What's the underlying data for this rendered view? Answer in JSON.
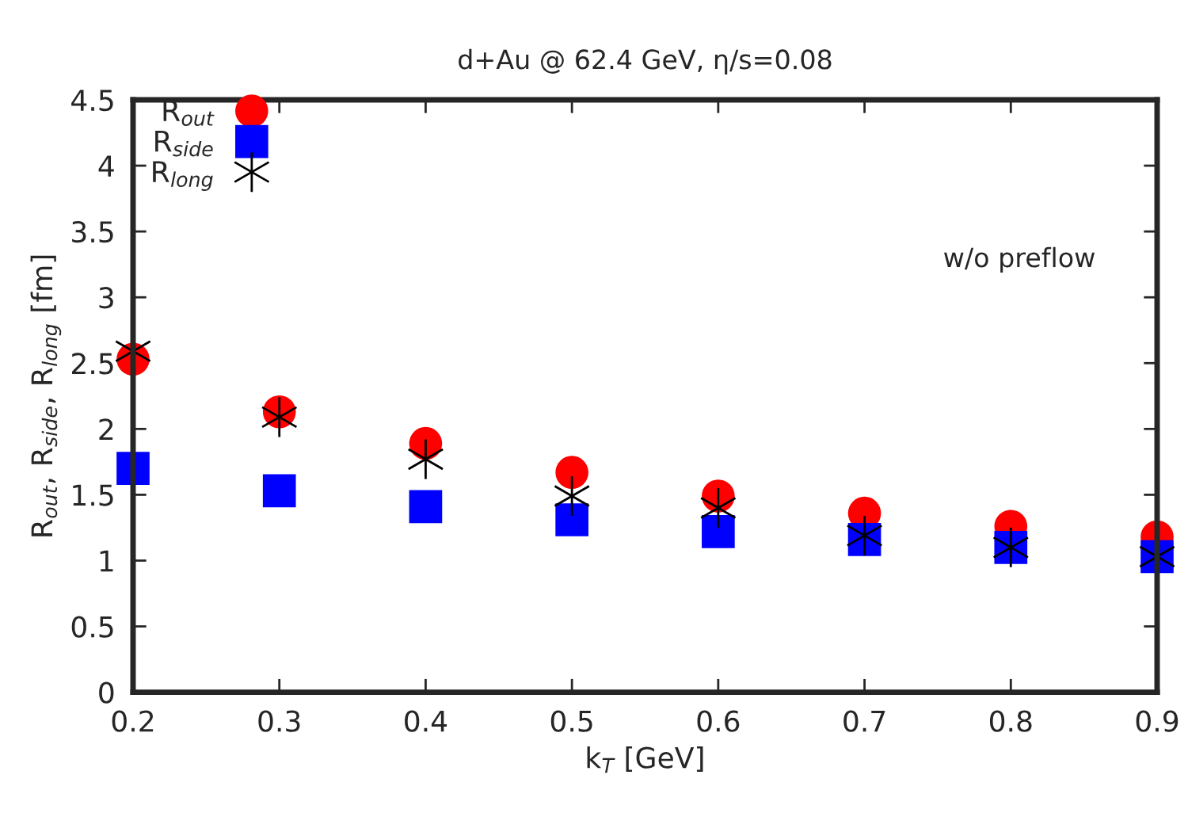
{
  "chart_data": {
    "type": "scatter",
    "title": "d+Au @ 62.4 GeV, η/s=0.08",
    "xlabel": "k$_{T}$ [GeV]",
    "ylabel": "R$_{out}$, R$_{side}$, R$_{long}$ [fm]",
    "x": [
      0.2,
      0.3,
      0.4,
      0.5,
      0.6,
      0.7,
      0.8,
      0.9
    ],
    "series": [
      {
        "name": "R$_{out}$",
        "color": "#ff0000",
        "marker": "circle",
        "values": [
          2.53,
          2.13,
          1.89,
          1.67,
          1.49,
          1.36,
          1.26,
          1.18
        ]
      },
      {
        "name": "R$_{side}$",
        "color": "#0000ff",
        "marker": "square",
        "values": [
          1.7,
          1.53,
          1.41,
          1.31,
          1.22,
          1.16,
          1.1,
          1.03
        ]
      },
      {
        "name": "R$_{long}$",
        "color": "#000000",
        "marker": "cross",
        "values": [
          2.59,
          2.09,
          1.77,
          1.49,
          1.4,
          1.19,
          1.1,
          1.03
        ]
      }
    ],
    "annotations": [
      "w/o preflow"
    ],
    "xlim": [
      0.2,
      0.9
    ],
    "xticks": [
      0.2,
      0.3,
      0.4,
      0.5,
      0.6,
      0.7,
      0.8,
      0.9
    ],
    "ylim": [
      0,
      4.5
    ],
    "yticks": [
      0,
      0.5,
      1,
      1.5,
      2,
      2.5,
      3,
      3.5,
      4,
      4.5
    ],
    "grid": false,
    "legend": "top left"
  }
}
